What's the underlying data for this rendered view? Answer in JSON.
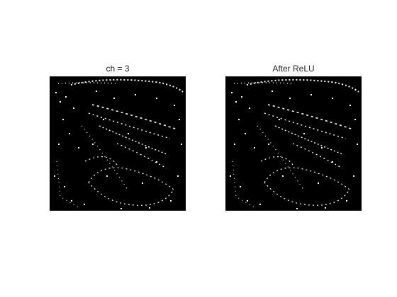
{
  "figure": {
    "panels": [
      {
        "title": "ch = 3"
      },
      {
        "title": "After ReLU"
      }
    ]
  }
}
